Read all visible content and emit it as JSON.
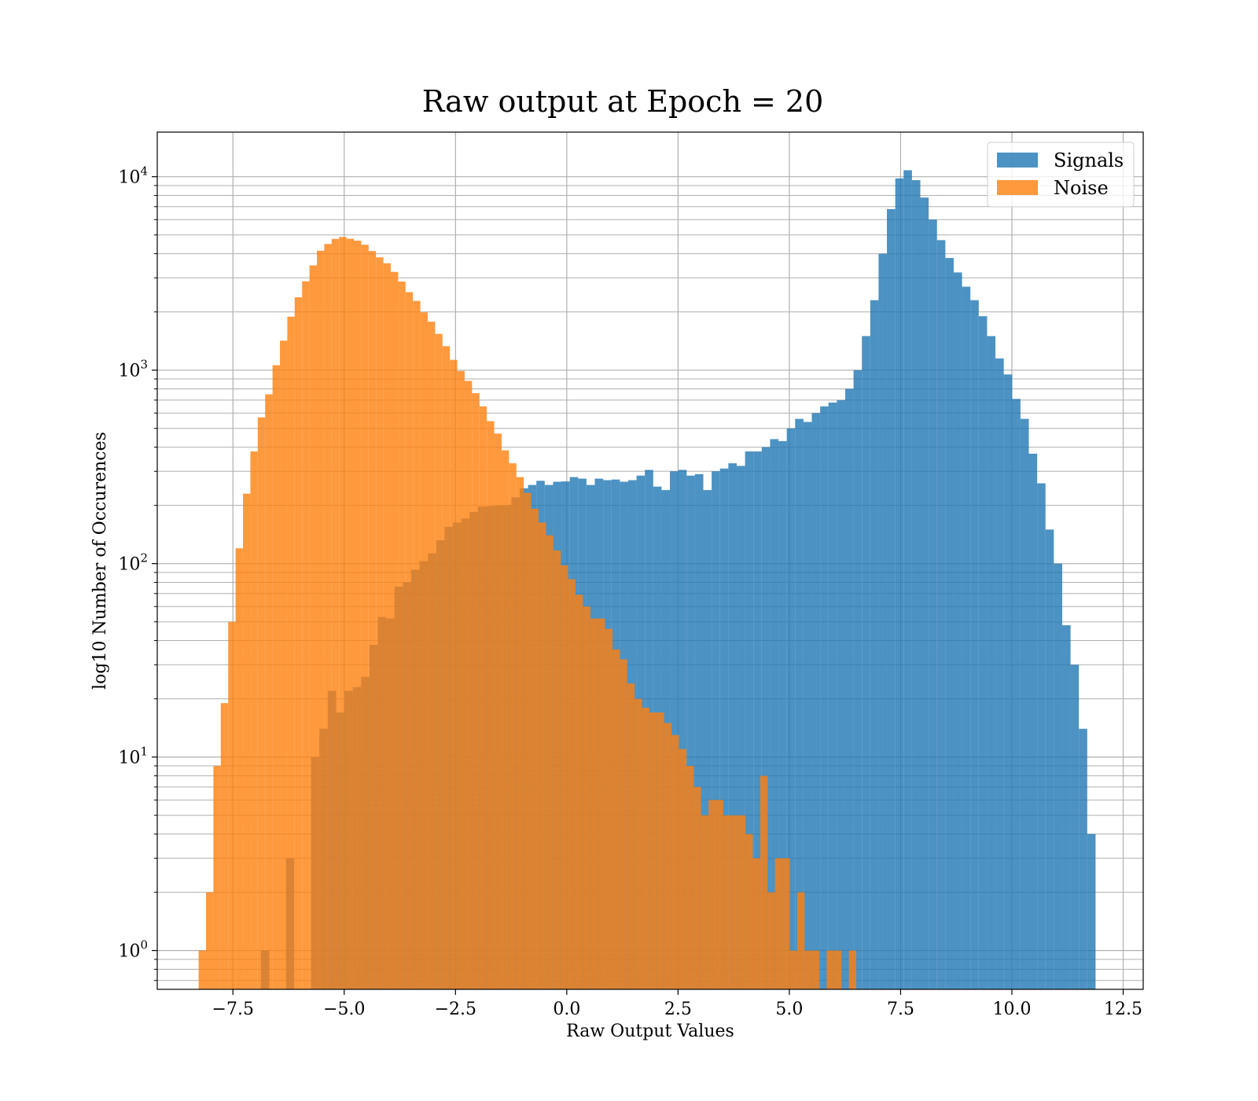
{
  "chart_data": {
    "type": "bar",
    "title": "Raw output at Epoch = 20",
    "xlabel": "Raw Output Values",
    "ylabel": "log10 Number of Occurences",
    "yscale": "log",
    "xlim": [
      -9.2,
      12.95
    ],
    "ylim": [
      0.63,
      17000
    ],
    "xticks": [
      -7.5,
      -5.0,
      -2.5,
      0.0,
      2.5,
      5.0,
      7.5,
      10.0,
      12.5
    ],
    "xtick_labels": [
      "−7.5",
      "−5.0",
      "−2.5",
      "0.0",
      "2.5",
      "5.0",
      "7.5",
      "10.0",
      "12.5"
    ],
    "yticks": [
      {
        "base": "10",
        "exp": "0",
        "value": 1
      },
      {
        "base": "10",
        "exp": "1",
        "value": 10
      },
      {
        "base": "10",
        "exp": "2",
        "value": 100
      },
      {
        "base": "10",
        "exp": "3",
        "value": 1000
      },
      {
        "base": "10",
        "exp": "4",
        "value": 10000
      }
    ],
    "grid": true,
    "legend_position": "top-right",
    "series": [
      {
        "name": "Signals",
        "color": "#1f77b4",
        "opacity": 0.8,
        "bin_start": -6.87,
        "bin_width": 0.1875,
        "counts": [
          1,
          0,
          0,
          3,
          0,
          0,
          10,
          14,
          22,
          17,
          22,
          23,
          26,
          38,
          53,
          52,
          76,
          80,
          93,
          103,
          113,
          132,
          155,
          163,
          171,
          185,
          197,
          198,
          200,
          201,
          220,
          245,
          255,
          268,
          255,
          265,
          266,
          280,
          275,
          255,
          275,
          270,
          272,
          265,
          270,
          285,
          305,
          250,
          240,
          300,
          305,
          285,
          290,
          240,
          300,
          310,
          330,
          320,
          380,
          380,
          400,
          440,
          430,
          500,
          560,
          540,
          600,
          650,
          680,
          700,
          800,
          1000,
          1500,
          2300,
          4000,
          6800,
          9800,
          10800,
          9600,
          7800,
          6000,
          4700,
          3800,
          3200,
          2700,
          2300,
          1900,
          1500,
          1150,
          950,
          710,
          560,
          370,
          260,
          150,
          100,
          48,
          30,
          14,
          4
        ]
      },
      {
        "name": "Noise",
        "color": "#ff7f0e",
        "opacity": 0.8,
        "bin_start": -8.27,
        "bin_width": 0.166,
        "counts": [
          1,
          2,
          9,
          19,
          50,
          120,
          230,
          380,
          570,
          750,
          1060,
          1420,
          1890,
          2380,
          2880,
          3480,
          4140,
          4490,
          4770,
          4880,
          4780,
          4670,
          4450,
          4130,
          3830,
          3570,
          3220,
          2870,
          2530,
          2280,
          1990,
          1780,
          1540,
          1330,
          1130,
          990,
          880,
          760,
          650,
          545,
          470,
          385,
          330,
          280,
          232,
          192,
          163,
          140,
          117,
          98,
          83,
          69,
          60,
          52,
          52,
          46,
          36,
          32,
          24,
          20,
          18,
          17,
          17,
          15,
          13,
          11,
          9,
          7,
          5,
          6,
          6,
          5,
          5,
          5,
          4,
          3,
          8,
          2,
          3,
          3,
          1,
          2,
          1,
          1,
          0,
          1,
          1,
          0,
          1,
          0,
          0,
          0,
          0,
          0,
          0,
          0,
          0,
          0,
          0,
          0
        ]
      }
    ]
  }
}
